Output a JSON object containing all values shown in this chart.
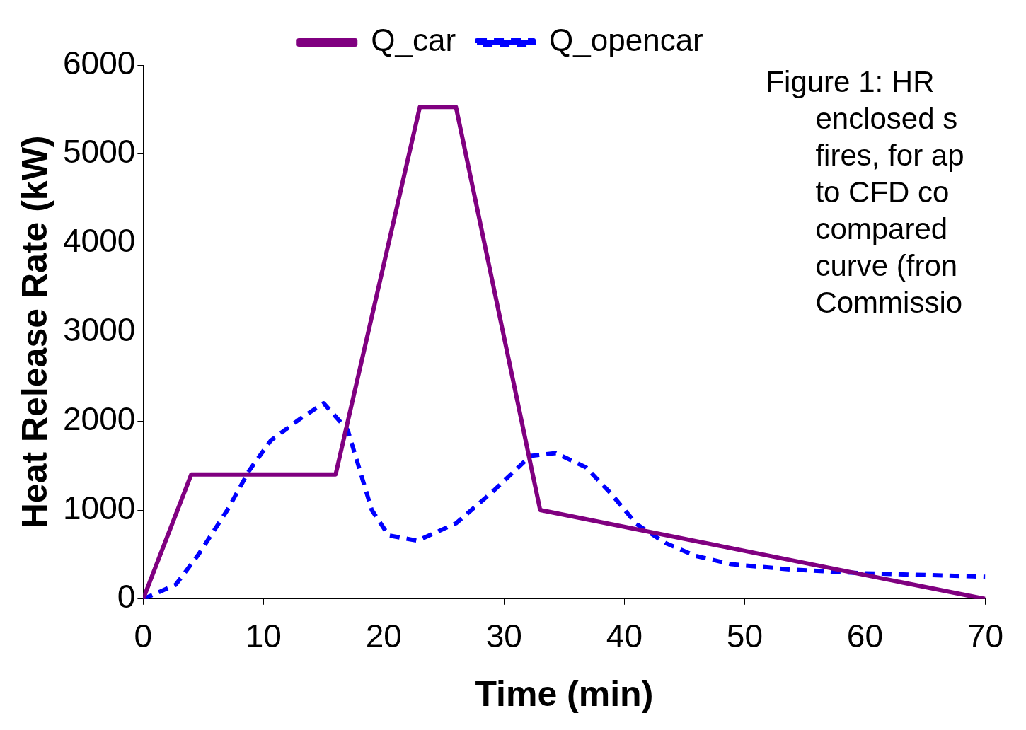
{
  "chart_data": {
    "type": "line",
    "xlabel": "Time (min)",
    "ylabel": "Heat Release Rate (kW)",
    "annotations": [
      "Figure 1: HR\nenclosed s\nfires, for ap\nto CFD co\ncompared\ncurve (fron\nCommissio"
    ],
    "xlim": [
      0,
      70
    ],
    "xticks": [
      0,
      10,
      20,
      30,
      40,
      50,
      60,
      70
    ],
    "ylim": [
      0,
      6000
    ],
    "yticks": [
      0,
      1000,
      2000,
      3000,
      4000,
      5000,
      6000
    ],
    "grid": false,
    "legend": "top",
    "marker": "none",
    "series": [
      {
        "name": "Q_car",
        "color": "#800080",
        "line_style": "solid",
        "x": [
          0,
          4,
          16,
          23,
          26,
          33,
          70
        ],
        "values": [
          0,
          1400,
          1400,
          5530,
          5530,
          1000,
          0
        ]
      },
      {
        "name": "Q_opencar",
        "color": "#0000ff",
        "line_style": "dashed",
        "x": [
          0,
          2.7,
          4.6,
          7,
          8.8,
          10.6,
          13.1,
          15,
          17,
          19,
          20.4,
          22.8,
          26,
          29,
          32.2,
          34.3,
          36.8,
          38.9,
          41,
          43.4,
          45.9,
          48.9,
          53.8,
          59.8,
          69,
          70
        ],
        "values": [
          0,
          160,
          500,
          1000,
          1440,
          1780,
          2030,
          2200,
          1900,
          1000,
          715,
          655,
          850,
          1200,
          1608,
          1640,
          1480,
          1183,
          843,
          630,
          485,
          391,
          332,
          290,
          255,
          250
        ]
      }
    ]
  }
}
